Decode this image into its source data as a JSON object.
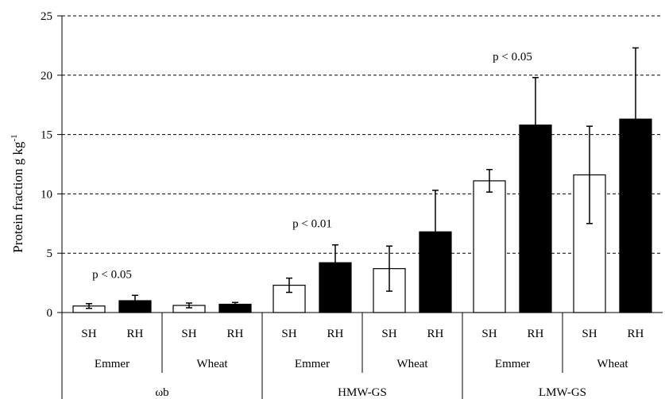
{
  "chart_data": {
    "type": "bar",
    "ylabel": "Protein fraction g kg",
    "ylabel_superscript": "-1",
    "ylim": [
      0,
      25
    ],
    "yticks": [
      0,
      5,
      10,
      15,
      20,
      25
    ],
    "grid": "dashed horizontal",
    "series": [
      {
        "name": "SH",
        "color": "#ffffff"
      },
      {
        "name": "RH",
        "color": "#000000"
      }
    ],
    "groups": [
      {
        "fraction": "ωb",
        "crops": [
          {
            "crop": "Emmer",
            "bars": [
              {
                "label": "SH",
                "value": 0.55,
                "error": 0.2
              },
              {
                "label": "RH",
                "value": 1.0,
                "error": 0.45
              }
            ]
          },
          {
            "crop": "Wheat",
            "bars": [
              {
                "label": "SH",
                "value": 0.6,
                "error": 0.2
              },
              {
                "label": "RH",
                "value": 0.7,
                "error": 0.15
              }
            ]
          }
        ]
      },
      {
        "fraction": "HMW-GS",
        "crops": [
          {
            "crop": "Emmer",
            "bars": [
              {
                "label": "SH",
                "value": 2.3,
                "error": 0.6
              },
              {
                "label": "RH",
                "value": 4.2,
                "error": 1.5
              }
            ]
          },
          {
            "crop": "Wheat",
            "bars": [
              {
                "label": "SH",
                "value": 3.7,
                "error": 1.9
              },
              {
                "label": "RH",
                "value": 6.8,
                "error": 3.5
              }
            ]
          }
        ]
      },
      {
        "fraction": "LMW-GS",
        "crops": [
          {
            "crop": "Emmer",
            "bars": [
              {
                "label": "SH",
                "value": 11.1,
                "error": 0.95
              },
              {
                "label": "RH",
                "value": 15.8,
                "error": 4.0
              }
            ]
          },
          {
            "crop": "Wheat",
            "bars": [
              {
                "label": "SH",
                "value": 11.6,
                "error": 4.1
              },
              {
                "label": "RH",
                "value": 16.3,
                "error": 6.0
              }
            ]
          }
        ]
      }
    ],
    "annotations": [
      {
        "text": "p < 0.05",
        "group": 0,
        "crop": 0
      },
      {
        "text": "p < 0.01",
        "group": 1,
        "crop": 0
      },
      {
        "text": "p < 0.05",
        "group": 2,
        "crop": 0
      }
    ]
  }
}
